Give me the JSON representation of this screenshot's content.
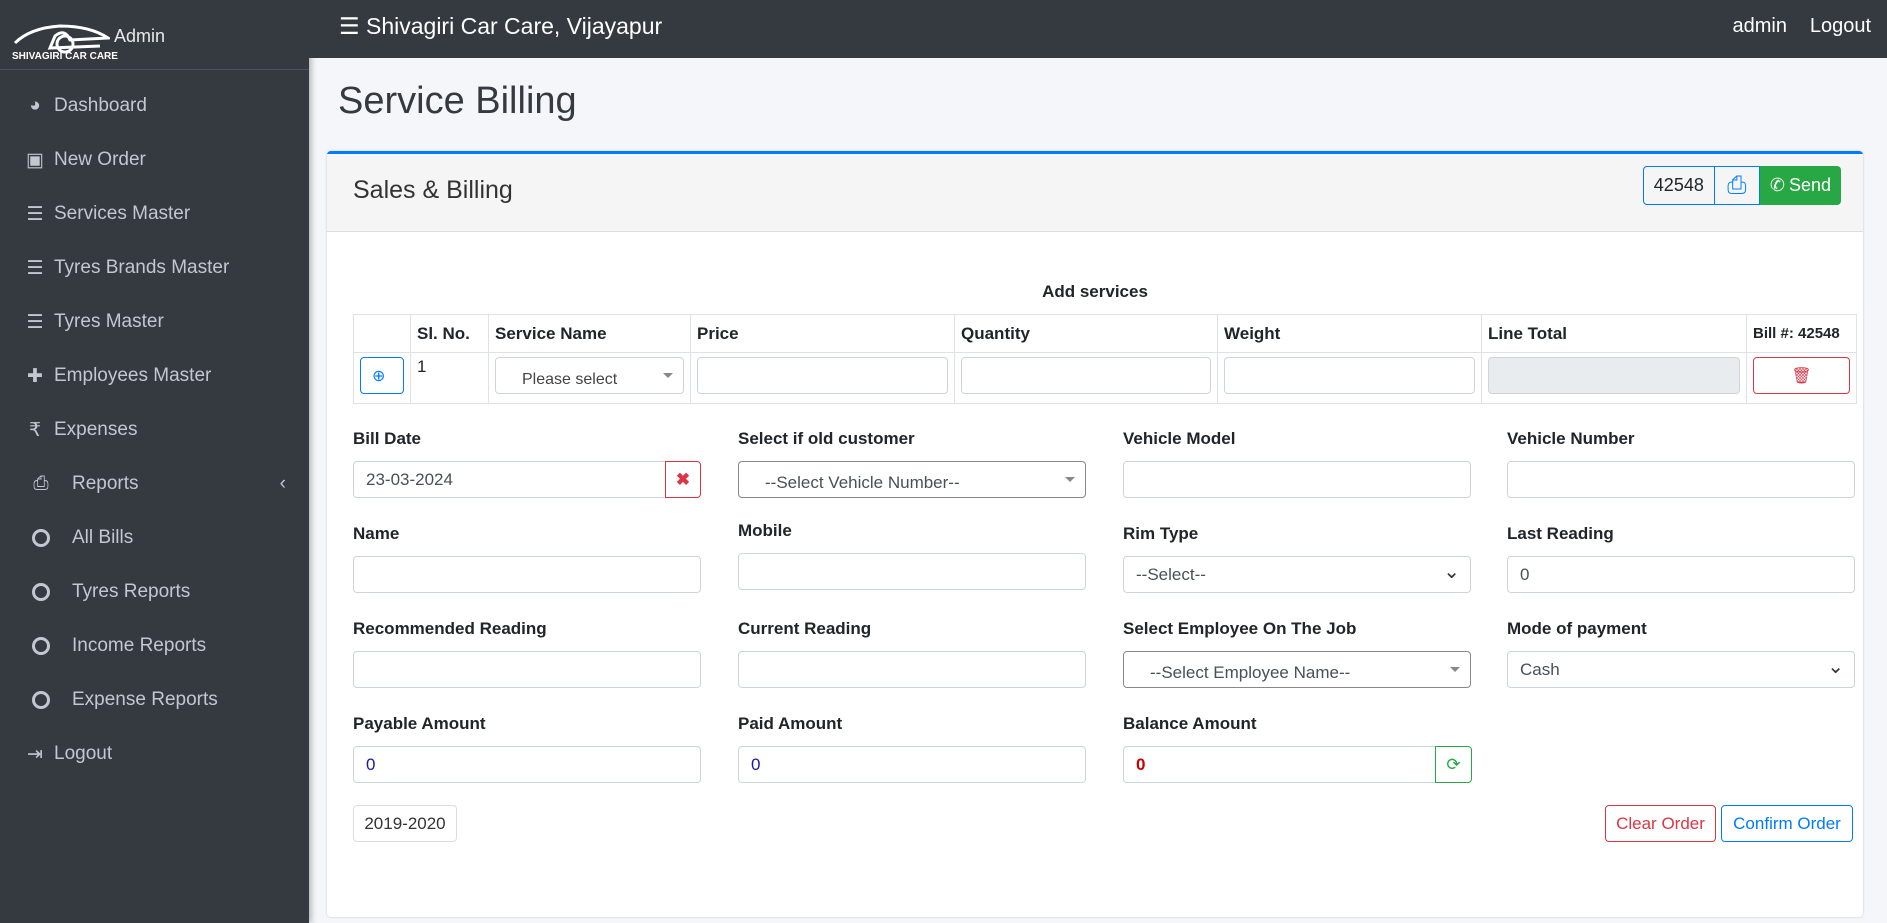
{
  "brand": {
    "logo_text": "SHIVAGIRI CAR CARE",
    "user": "Admin"
  },
  "sidebar": {
    "items": [
      {
        "label": "Dashboard",
        "icon": "tachometer-icon"
      },
      {
        "label": "New Order",
        "icon": "money-icon"
      },
      {
        "label": "Services Master",
        "icon": "list-icon"
      },
      {
        "label": "Tyres Brands Master",
        "icon": "list-icon"
      },
      {
        "label": "Tyres Master",
        "icon": "list-icon"
      },
      {
        "label": "Employees Master",
        "icon": "plus-icon"
      },
      {
        "label": "Expenses",
        "icon": "rupee-icon"
      },
      {
        "label": "Reports",
        "icon": "print-icon"
      },
      {
        "label": "All Bills",
        "icon": "circle-icon"
      },
      {
        "label": "Tyres Reports",
        "icon": "circle-icon"
      },
      {
        "label": "Income Reports",
        "icon": "circle-icon"
      },
      {
        "label": "Expense Reports",
        "icon": "circle-icon"
      },
      {
        "label": "Logout",
        "icon": "sign-out-icon"
      }
    ]
  },
  "topbar": {
    "title": "Shivagiri Car Care, Vijayapur",
    "user": "admin",
    "logout": "Logout"
  },
  "page": {
    "title": "Service Billing"
  },
  "card": {
    "title": "Sales & Billing",
    "bill_no": "42548",
    "send": "Send"
  },
  "services": {
    "heading": "Add services",
    "columns": [
      "",
      "Sl. No.",
      "Service Name",
      "Price",
      "Quantity",
      "Weight",
      "Line Total",
      "Bill #: 42548"
    ],
    "row": {
      "sl": "1",
      "service_placeholder": "Please select",
      "price": "",
      "quantity": "",
      "weight": "",
      "line_total": ""
    }
  },
  "form": {
    "bill_date": {
      "label": "Bill Date",
      "value": "23-03-2024"
    },
    "old_customer": {
      "label": "Select if old customer",
      "value": "--Select Vehicle Number--"
    },
    "vehicle_model": {
      "label": "Vehicle Model",
      "value": ""
    },
    "vehicle_number": {
      "label": "Vehicle Number",
      "value": ""
    },
    "name": {
      "label": "Name",
      "value": ""
    },
    "mobile": {
      "label": "Mobile",
      "value": ""
    },
    "rim_type": {
      "label": "Rim Type",
      "value": "--Select--"
    },
    "last_reading": {
      "label": "Last Reading",
      "value": "0"
    },
    "recommended_reading": {
      "label": "Recommended Reading",
      "value": ""
    },
    "current_reading": {
      "label": "Current Reading",
      "value": ""
    },
    "employee": {
      "label": "Select Employee On The Job",
      "value": "--Select Employee Name--"
    },
    "payment_mode": {
      "label": "Mode of payment",
      "value": "Cash"
    },
    "payable": {
      "label": "Payable Amount",
      "value": "0"
    },
    "paid": {
      "label": "Paid Amount",
      "value": "0"
    },
    "balance": {
      "label": "Balance Amount",
      "value": "0"
    }
  },
  "footer": {
    "year": "2019-2020",
    "clear": "Clear Order",
    "confirm": "Confirm Order"
  },
  "colors": {
    "primary": "#007bff",
    "success": "#28a745",
    "danger": "#dc3545",
    "sidebar": "#343a40"
  }
}
